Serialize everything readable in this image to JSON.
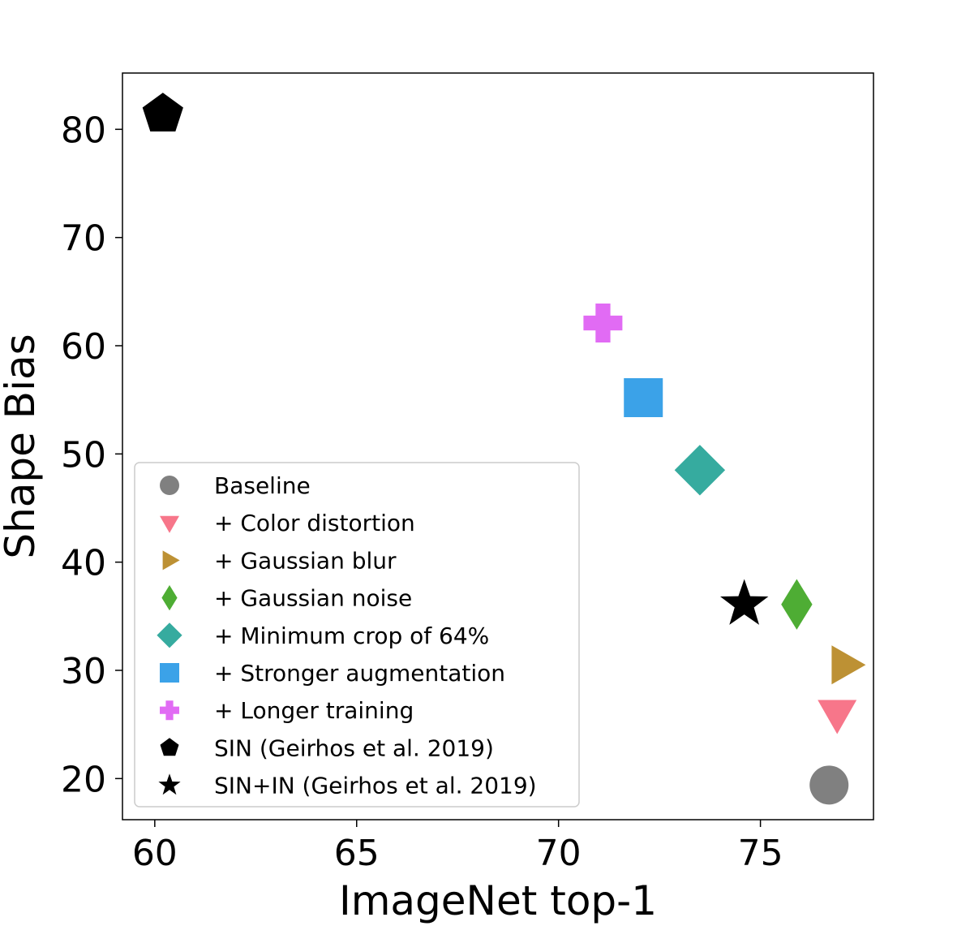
{
  "chart_data": {
    "type": "scatter",
    "title": "",
    "xlabel": "ImageNet top-1",
    "ylabel": "Shape Bias",
    "xlim": [
      59.2,
      77.8
    ],
    "ylim": [
      16.2,
      85.2
    ],
    "xticks": [
      60,
      65,
      70,
      75
    ],
    "yticks": [
      20,
      30,
      40,
      50,
      60,
      70,
      80
    ],
    "grid": false,
    "legend_position": "lower-left",
    "series": [
      {
        "name": "Baseline",
        "marker": "circle",
        "color": "#808080",
        "x": 76.7,
        "y": 19.4
      },
      {
        "name": "+ Color distortion",
        "marker": "triangle-down",
        "color": "#f7768a",
        "x": 76.9,
        "y": 26.0
      },
      {
        "name": "+ Gaussian blur",
        "marker": "triangle-right",
        "color": "#bd9134",
        "x": 77.1,
        "y": 30.5
      },
      {
        "name": "+ Gaussian noise",
        "marker": "thin-diamond",
        "color": "#4ead34",
        "x": 75.9,
        "y": 36.1
      },
      {
        "name": "+ Minimum crop of 64%",
        "marker": "diamond",
        "color": "#36ab9f",
        "x": 73.5,
        "y": 48.5
      },
      {
        "name": "+ Stronger augmentation",
        "marker": "square",
        "color": "#3ba2e8",
        "x": 72.1,
        "y": 55.2
      },
      {
        "name": "+ Longer training",
        "marker": "plus",
        "color": "#e16bf4",
        "x": 71.1,
        "y": 62.1
      },
      {
        "name": "SIN (Geirhos et al. 2019)",
        "marker": "pentagon",
        "color": "#000000",
        "x": 60.2,
        "y": 81.4
      },
      {
        "name": "SIN+IN (Geirhos et al. 2019)",
        "marker": "star",
        "color": "#000000",
        "x": 74.6,
        "y": 36.1
      }
    ]
  }
}
